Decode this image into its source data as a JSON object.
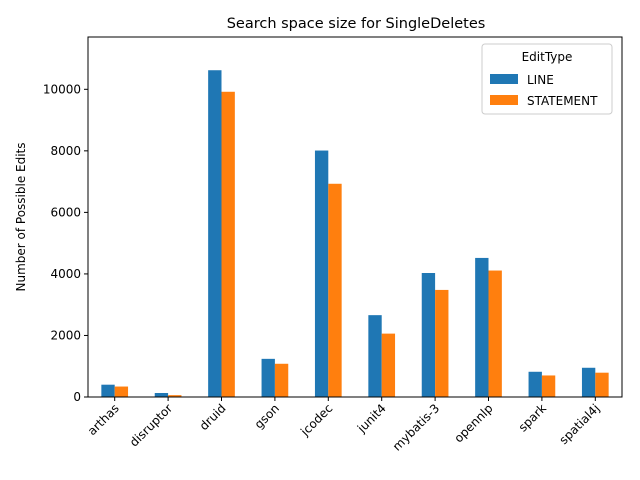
{
  "chart_data": {
    "type": "bar",
    "title": "Search space size for SingleDeletes",
    "xlabel": "",
    "ylabel": "Number of Possible Edits",
    "categories": [
      "arthas",
      "disruptor",
      "druid",
      "gson",
      "jcodec",
      "junit4",
      "mybatis-3",
      "opennlp",
      "spark",
      "spatial4j"
    ],
    "series": [
      {
        "name": "LINE",
        "color": "#1f77b4",
        "values": [
          400,
          130,
          10620,
          1240,
          8010,
          2660,
          4030,
          4520,
          820,
          950
        ]
      },
      {
        "name": "STATEMENT",
        "color": "#ff7f0e",
        "values": [
          340,
          60,
          9920,
          1080,
          6930,
          2060,
          3480,
          4110,
          700,
          790
        ]
      }
    ],
    "ylim": [
      0,
      11700
    ],
    "yticks": [
      0,
      2000,
      4000,
      6000,
      8000,
      10000
    ],
    "grid": false,
    "legend": {
      "title": "EditType",
      "placement": "top-right"
    }
  }
}
